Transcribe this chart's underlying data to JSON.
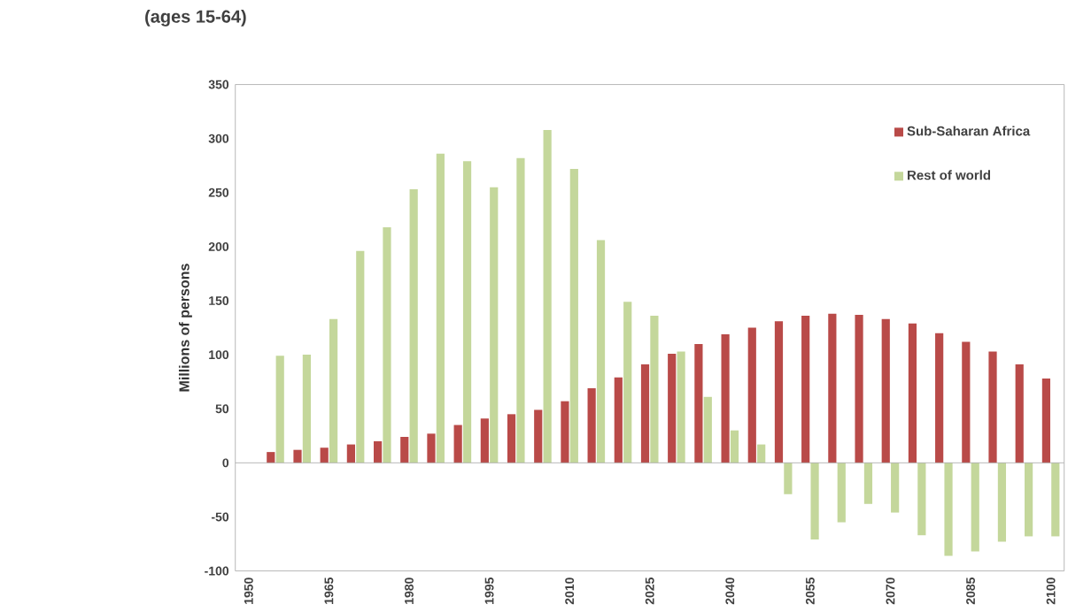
{
  "chart_data": {
    "type": "bar",
    "title": "(ages 15-64)",
    "ylabel": "Millions of persons",
    "categories": [
      "1950",
      null,
      null,
      "1965",
      null,
      null,
      "1980",
      null,
      null,
      "1995",
      null,
      null,
      "2010",
      null,
      null,
      "2025",
      null,
      null,
      "2040",
      null,
      null,
      "2055",
      null,
      null,
      "2070",
      null,
      null,
      "2085",
      null,
      null,
      "2100"
    ],
    "series": [
      {
        "name": "Sub-Saharan Africa",
        "color": "#b94a48",
        "values": [
          null,
          10,
          12,
          14,
          17,
          20,
          24,
          27,
          35,
          41,
          45,
          49,
          57,
          69,
          79,
          91,
          101,
          110,
          119,
          125,
          131,
          136,
          138,
          137,
          133,
          129,
          120,
          112,
          103,
          91,
          78
        ]
      },
      {
        "name": "Rest of world",
        "color": "#c4d79b",
        "values": [
          null,
          99,
          100,
          133,
          196,
          218,
          253,
          286,
          279,
          255,
          282,
          308,
          272,
          206,
          149,
          136,
          103,
          61,
          30,
          17,
          -29,
          -71,
          -55,
          -38,
          -46,
          -67,
          -86,
          -82,
          -73,
          -68,
          -68
        ]
      }
    ],
    "ylim": [
      -100,
      350
    ],
    "yticks": [
      -100,
      -50,
      0,
      50,
      100,
      150,
      200,
      250,
      300,
      350
    ],
    "legend": "top right"
  }
}
